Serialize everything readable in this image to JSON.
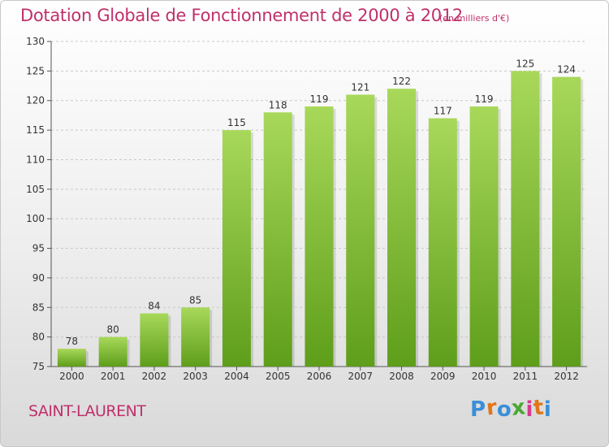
{
  "header": {
    "title": "Dotation Globale de Fonctionnement de 2000 à 2012",
    "units": "(en milliers d'€)"
  },
  "footer": {
    "commune": "SAINT-LAURENT",
    "logo_text": "Proxiti"
  },
  "colors": {
    "accent": "#c0306a",
    "bar_top": "#a8d85a",
    "bar_bottom": "#5e9e1a",
    "logo_letters": [
      "#3a8fd8",
      "#e0761c",
      "#3a8fd8",
      "#4aa832",
      "#d63b8c",
      "#e0761c",
      "#3a8fd8"
    ]
  },
  "chart_data": {
    "type": "bar",
    "categories": [
      "2000",
      "2001",
      "2002",
      "2003",
      "2004",
      "2005",
      "2006",
      "2007",
      "2008",
      "2009",
      "2010",
      "2011",
      "2012"
    ],
    "values": [
      78,
      80,
      84,
      85,
      115,
      118,
      119,
      121,
      122,
      117,
      119,
      125,
      124
    ],
    "ylim": [
      75,
      130
    ],
    "yticks": [
      75,
      80,
      85,
      90,
      95,
      100,
      105,
      110,
      115,
      120,
      125,
      130
    ],
    "grid": true,
    "data_labels": true
  }
}
